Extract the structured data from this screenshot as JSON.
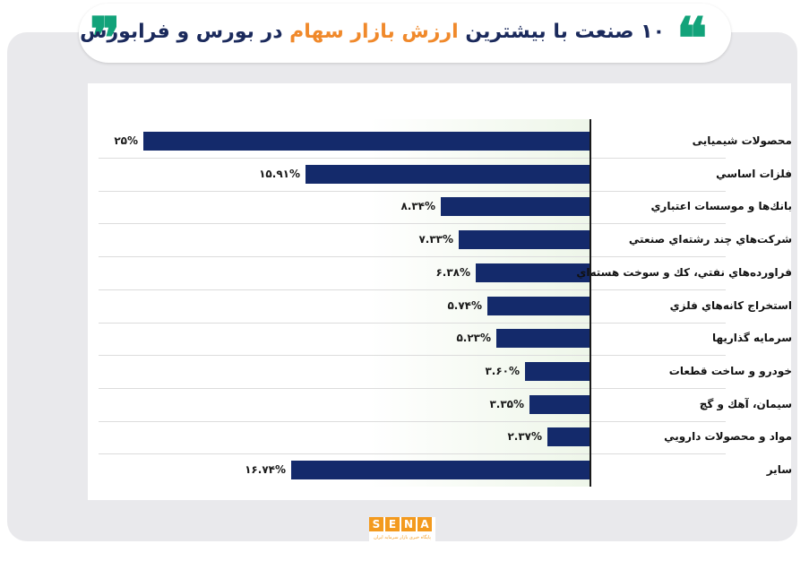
{
  "header": {
    "title_part1": "۱۰ صنعت با بیشترین",
    "title_accent": "ارزش بازار سهام",
    "title_part2": "در بورس و فرابورس",
    "quote_open": "❞",
    "quote_close": "❝"
  },
  "colors": {
    "bar": "#142a6b",
    "accent": "#f0892b",
    "title": "#1b2a5c",
    "quote": "#12a37a",
    "frame": "#e9e9ec"
  },
  "chart_data": {
    "type": "bar",
    "orientation": "horizontal",
    "categories": [
      "محصولات شیمیایی",
      "فلزات اساسي",
      "بانك‌ها و موسسات اعتباري",
      "شرکت‌هاي چند رشته‌اي صنعتي",
      "فراورده‌هاي نفتي، كك و سوخت هسته‌اي",
      "استخراج كانه‌هاي فلزي",
      "سرمايه گذاريها",
      "خودرو و ساخت قطعات",
      "سيمان، آهك و گچ",
      "مواد و محصولات دارويي",
      "ساير"
    ],
    "values": [
      25,
      15.91,
      8.34,
      7.33,
      6.38,
      5.74,
      5.23,
      3.6,
      3.35,
      2.37,
      16.74
    ],
    "value_labels": [
      "۲۵%",
      "۱۵.۹۱%",
      "۸.۳۴%",
      "۷.۳۳%",
      "۶.۳۸%",
      "۵.۷۴%",
      "۵.۲۳%",
      "۳.۶۰%",
      "۳.۳۵%",
      "۲.۳۷%",
      "۱۶.۷۴%"
    ],
    "xlim": [
      0,
      25
    ],
    "grid": false
  },
  "logo": {
    "letters": [
      "S",
      "E",
      "N",
      "A"
    ],
    "tagline": "پایگاه خبری بازار سرمایه ایران"
  }
}
